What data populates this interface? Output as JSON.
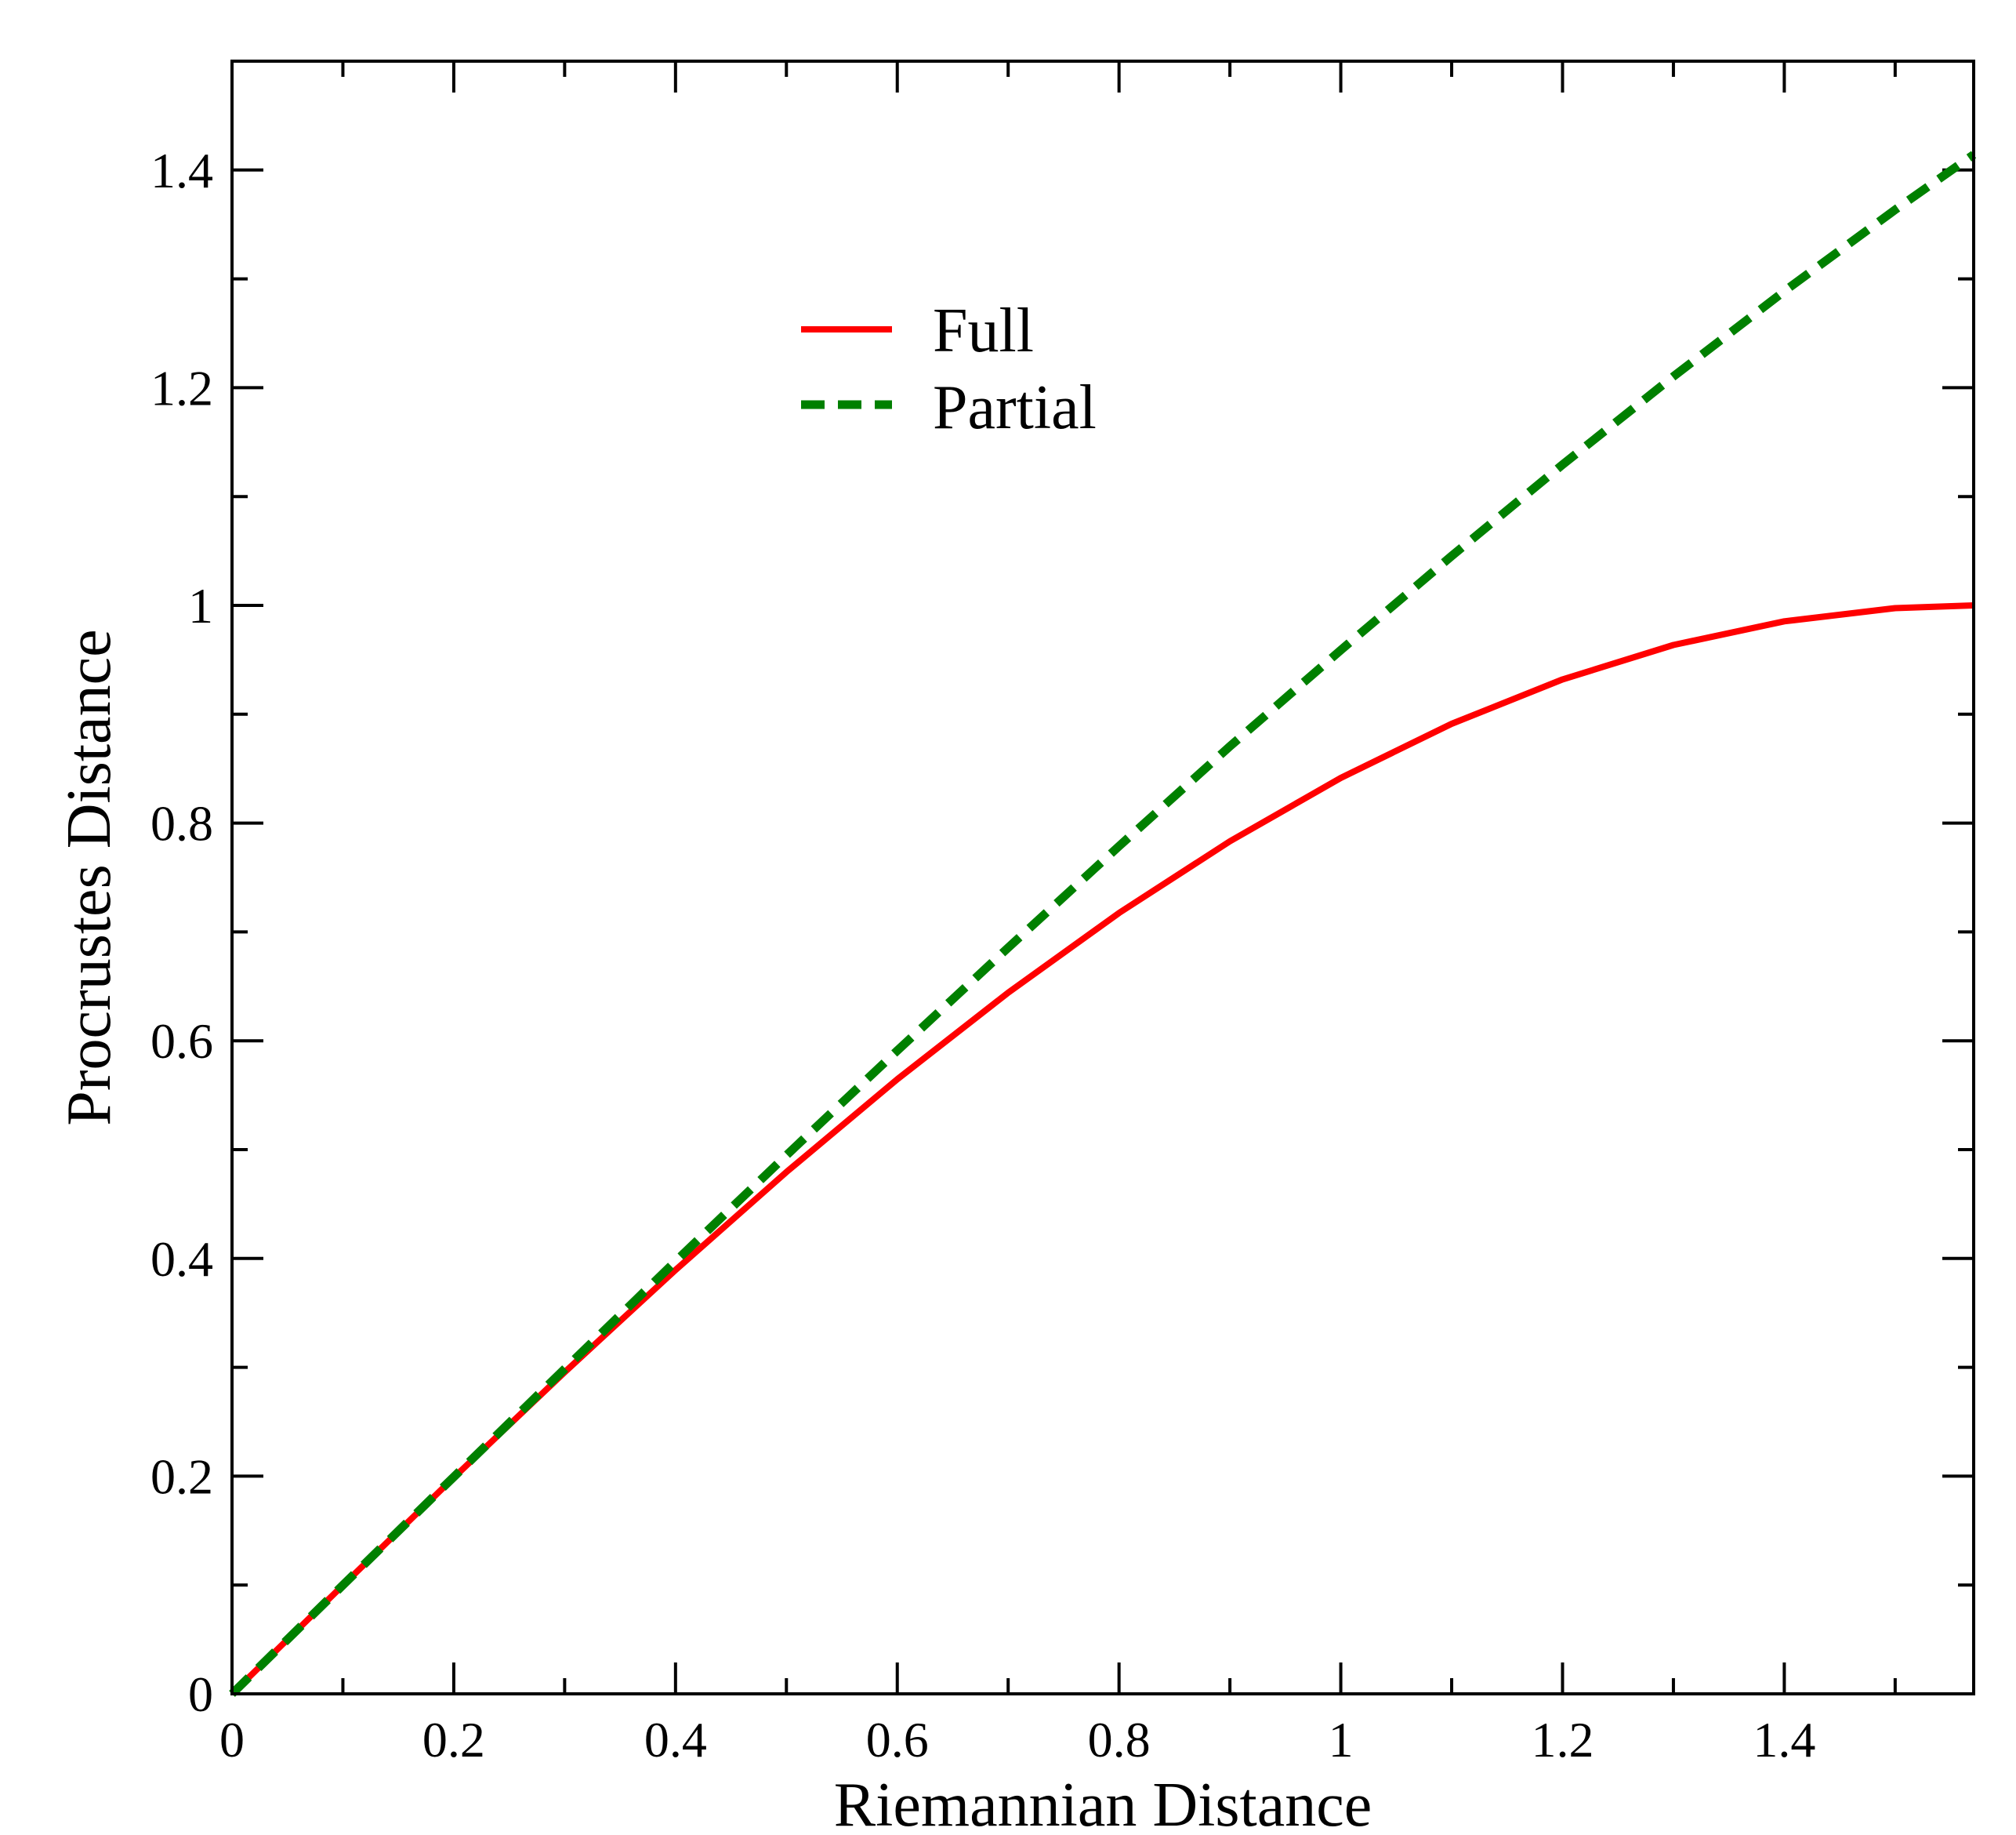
{
  "chart_data": {
    "type": "line",
    "title": "",
    "xlabel": "Riemannian Distance",
    "ylabel": "Procrustes Distance",
    "xlim": [
      0,
      1.5708
    ],
    "ylim": [
      0,
      1.5
    ],
    "xticks": [
      0,
      0.2,
      0.4,
      0.6,
      0.8,
      1,
      1.2,
      1.4
    ],
    "xtick_labels": [
      "0",
      "0.2",
      "0.4",
      "0.6",
      "0.8",
      "1",
      "1.2",
      "1.4"
    ],
    "yticks": [
      0,
      0.2,
      0.4,
      0.6,
      0.8,
      1,
      1.2,
      1.4
    ],
    "ytick_labels": [
      "0",
      "0.2",
      "0.4",
      "0.6",
      "0.8",
      "1",
      "1.2",
      "1.4"
    ],
    "x_minor_step": 0.1,
    "y_minor_step": 0.1,
    "grid": false,
    "legend_position": "upper-center",
    "x": [
      0,
      0.1,
      0.2,
      0.3,
      0.4,
      0.5,
      0.6,
      0.7,
      0.8,
      0.9,
      1.0,
      1.1,
      1.2,
      1.3,
      1.4,
      1.5,
      1.5708
    ],
    "series": [
      {
        "name": "Full",
        "color": "#ff0000",
        "dash": "solid",
        "values": [
          0,
          0.0998,
          0.1987,
          0.2955,
          0.3894,
          0.4794,
          0.5646,
          0.6442,
          0.7174,
          0.7833,
          0.8415,
          0.8912,
          0.932,
          0.9636,
          0.9854,
          0.9975,
          1.0
        ]
      },
      {
        "name": "Partial",
        "color": "#008000",
        "dash": "dashed",
        "values": [
          0,
          0.0999,
          0.1993,
          0.2985,
          0.3973,
          0.4948,
          0.5909,
          0.6855,
          0.7788,
          0.8705,
          0.9589,
          1.0454,
          1.1293,
          1.2103,
          1.2886,
          1.3635,
          1.4142
        ]
      }
    ]
  }
}
